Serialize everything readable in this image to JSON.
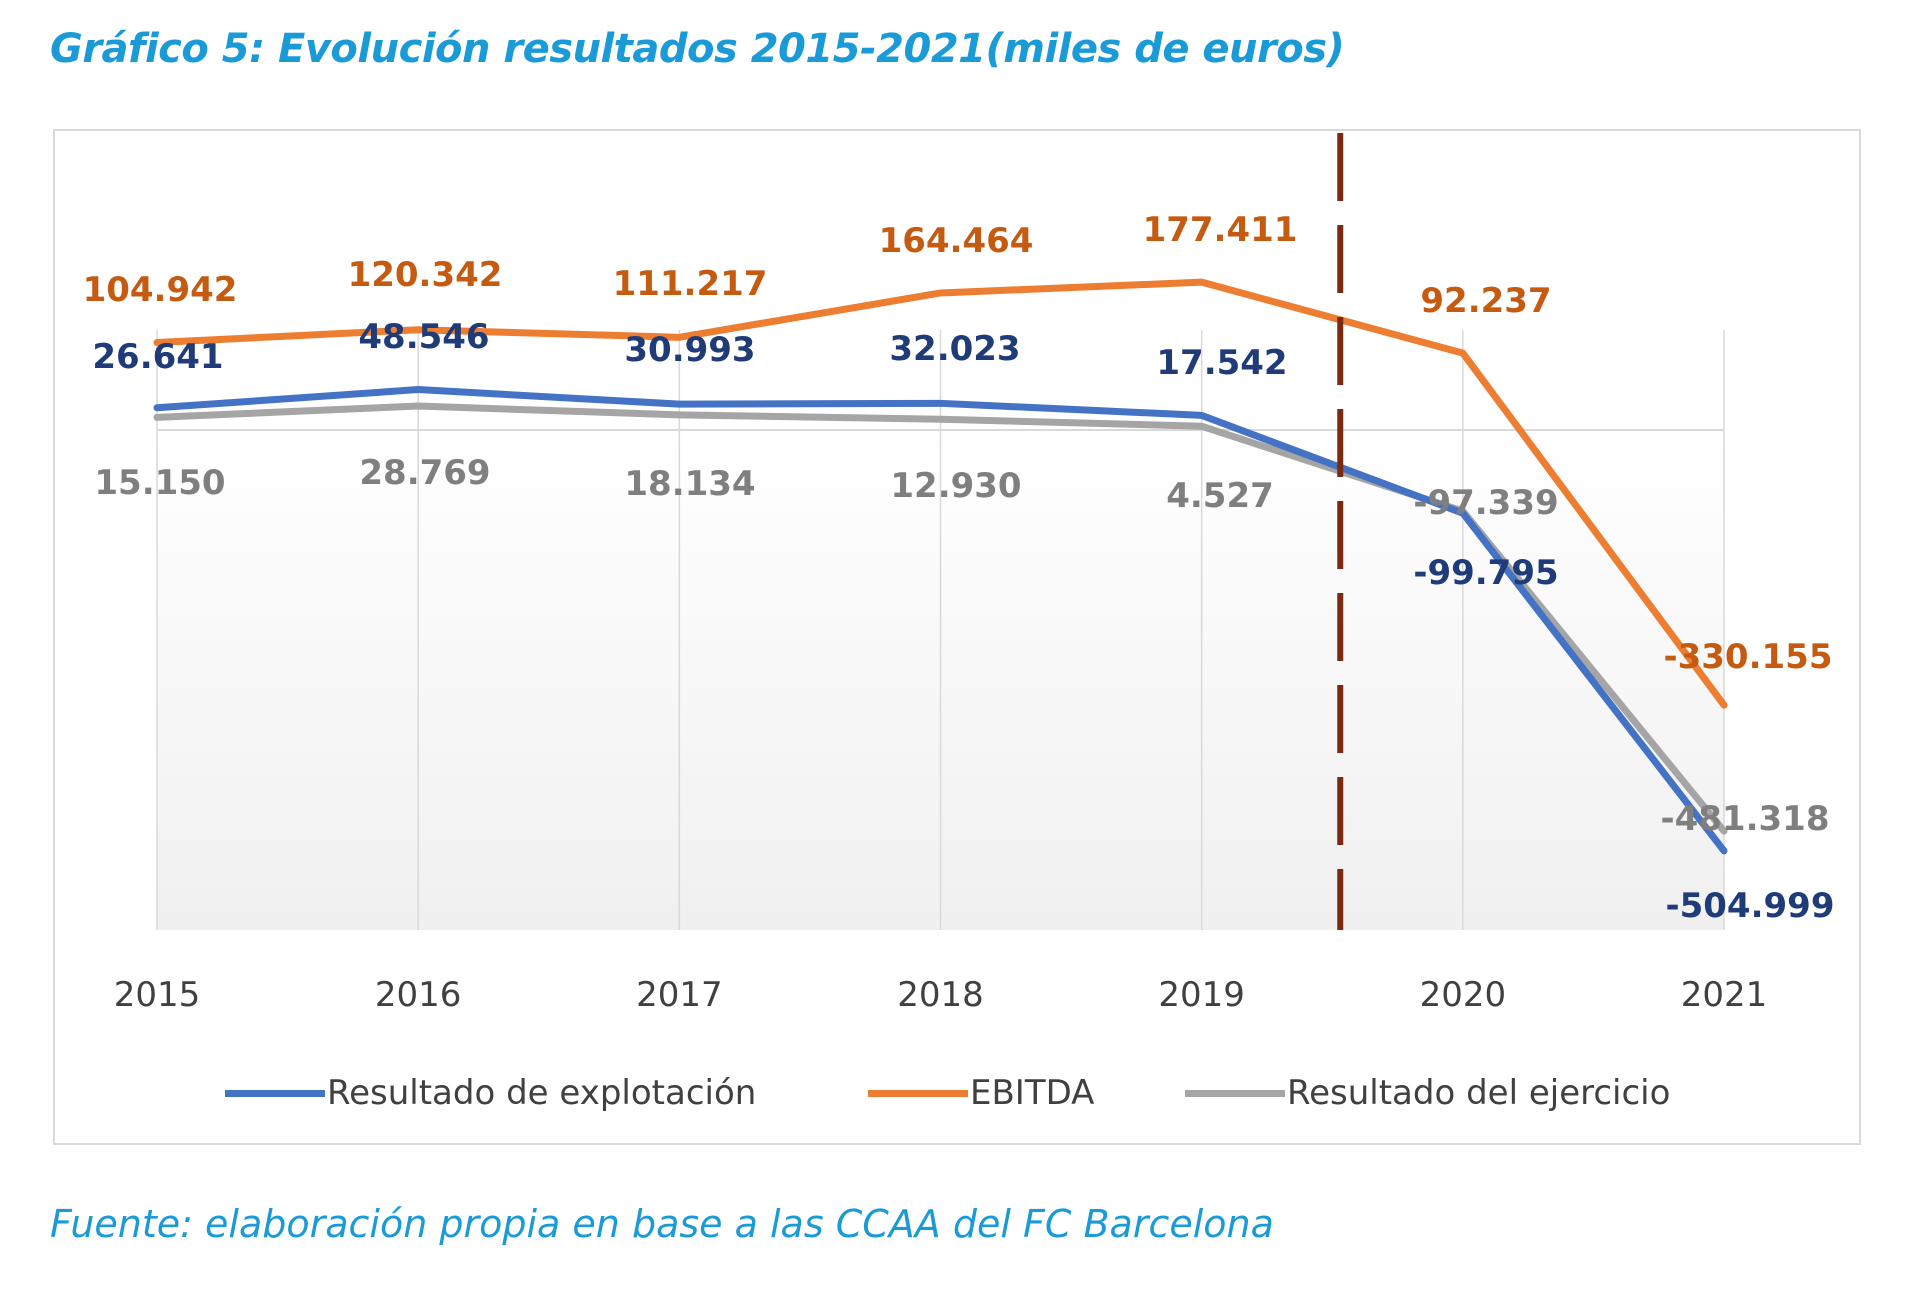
{
  "title": "Gráfico 5: Evolución resultados 2015-2021(miles de euros)",
  "source": "Fuente: elaboración propia en base a las CCAA del FC Barcelona",
  "chart_data": {
    "type": "line",
    "title": "Gráfico 5: Evolución resultados 2015-2021(miles de euros)",
    "xlabel": "",
    "ylabel": "miles de euros",
    "categories": [
      "2015",
      "2016",
      "2017",
      "2018",
      "2019",
      "2020",
      "2021"
    ],
    "ylim": [
      -600000,
      200000
    ],
    "grid": "vertical gridlines at categories; zero baseline",
    "legend_position": "bottom",
    "annotation": "dashed vertical separator between 2019 and 2020",
    "series": [
      {
        "name": "Resultado de explotación",
        "color": "#4472c4",
        "label_color": "#1f3b78",
        "values": [
          26641,
          48546,
          30993,
          32023,
          17542,
          -99795,
          -504999
        ],
        "labels": [
          "26.641",
          "48.546",
          "30.993",
          "32.023",
          "17.542",
          "-99.795",
          "-504.999"
        ]
      },
      {
        "name": "EBITDA",
        "color": "#ed7d31",
        "label_color": "#c55a11",
        "values": [
          104942,
          120342,
          111217,
          164464,
          177411,
          92237,
          -330155
        ],
        "labels": [
          "104.942",
          "120.342",
          "111.217",
          "164.464",
          "177.411",
          "92.237",
          "-330.155"
        ]
      },
      {
        "name": "Resultado del ejercicio",
        "color": "#a5a5a5",
        "label_color": "#7f7f7f",
        "values": [
          15150,
          28769,
          18134,
          12930,
          4527,
          -97339,
          -481318
        ],
        "labels": [
          "15.150",
          "28.769",
          "18.134",
          "12.930",
          "4.527",
          "-97.339",
          "-481.318"
        ]
      }
    ],
    "separator_color": "#7a2a10"
  }
}
